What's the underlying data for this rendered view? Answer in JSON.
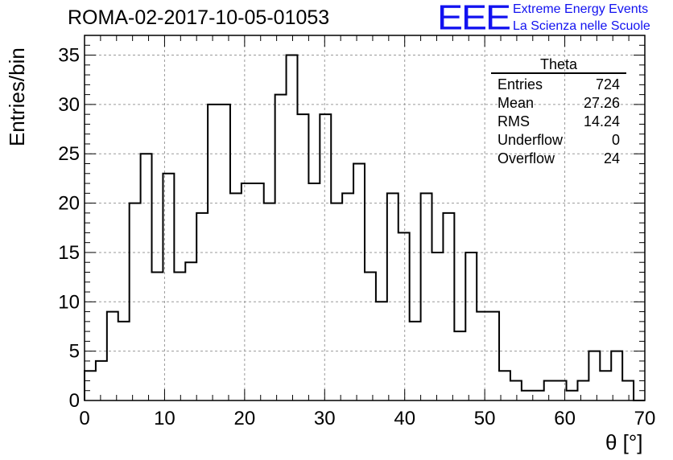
{
  "header": {
    "title": "ROMA-02-2017-10-05-01053",
    "logo_mark": "EEE",
    "logo_line1": "Extreme Energy Events",
    "logo_line2": "La Scienza nelle Scuole"
  },
  "stats_box": {
    "title": "Theta",
    "rows": [
      {
        "label": "Entries",
        "value": "724"
      },
      {
        "label": "Mean",
        "value": "27.26"
      },
      {
        "label": "RMS",
        "value": "14.24"
      },
      {
        "label": "Underflow",
        "value": "0"
      },
      {
        "label": "Overflow",
        "value": "24"
      }
    ]
  },
  "colors": {
    "logo": "#1212f0",
    "grid": "#9a9a9a",
    "line": "#000000"
  },
  "chart_data": {
    "type": "bar",
    "histogram_style": "step",
    "title": "ROMA-02-2017-10-05-01053",
    "xlabel": "θ [°]",
    "ylabel": "Entries/bin",
    "xlim": [
      0,
      70
    ],
    "ylim": [
      0,
      37
    ],
    "x_ticks": [
      0,
      10,
      20,
      30,
      40,
      50,
      60,
      70
    ],
    "y_ticks": [
      0,
      5,
      10,
      15,
      20,
      25,
      30,
      35
    ],
    "grid": true,
    "bin_width": 1.4,
    "bin_edges_start": 0,
    "values": [
      3,
      4,
      9,
      8,
      20,
      25,
      13,
      23,
      13,
      14,
      19,
      30,
      30,
      21,
      22,
      22,
      20,
      31,
      35,
      29,
      22,
      29,
      20,
      21,
      24,
      13,
      10,
      21,
      17,
      8,
      21,
      15,
      19,
      7,
      15,
      9,
      9,
      3,
      2,
      1,
      1,
      2,
      2,
      1,
      2,
      5,
      3,
      5,
      2,
      0
    ]
  }
}
